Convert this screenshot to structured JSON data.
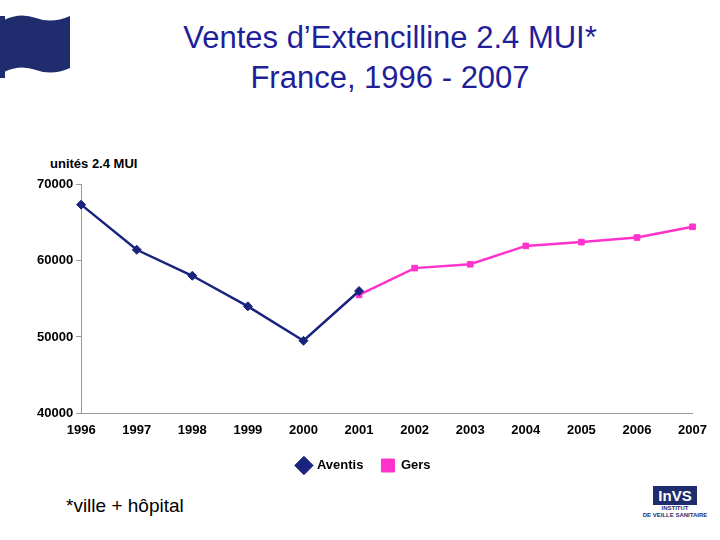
{
  "chart_data": {
    "type": "line",
    "title": [
      "Ventes d’Extencilline 2.4 MUI*",
      "France, 1996 - 2007"
    ],
    "y_label": "unités 2.4 MUI",
    "footnote": "*ville + hôpital",
    "logo": [
      "InVS",
      "INSTITUT",
      "DE VEILLE SANITAIRE"
    ],
    "categories": [
      "1996",
      "1997",
      "1998",
      "1999",
      "2000",
      "2001",
      "2002",
      "2003",
      "2004",
      "2005",
      "2006",
      "2007"
    ],
    "series": [
      {
        "name": "Aventis",
        "color": "#1a237e",
        "marker": "diamond",
        "values": [
          67300,
          61400,
          58000,
          54000,
          49500,
          56000,
          null,
          null,
          null,
          null,
          null,
          null
        ]
      },
      {
        "name": "Gers",
        "color": "#ff33cc",
        "marker": "square",
        "values": [
          null,
          null,
          null,
          null,
          null,
          55500,
          59000,
          59500,
          61900,
          62400,
          63000,
          64400
        ]
      }
    ],
    "ylim": [
      40000,
      70000
    ],
    "yticks": [
      40000,
      50000,
      60000,
      70000
    ],
    "grid": false,
    "legend": "bottom"
  }
}
